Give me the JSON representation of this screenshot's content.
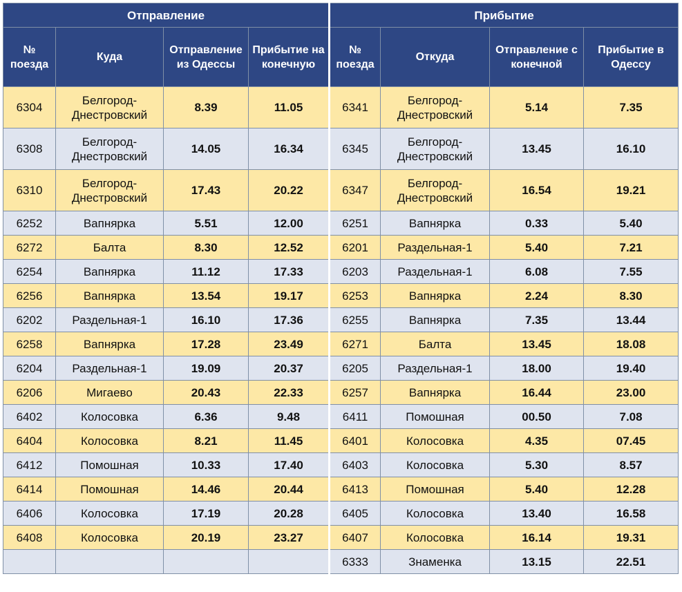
{
  "header": {
    "departure": "Отправление",
    "arrival": "Прибытие",
    "columns": [
      "№ поезда",
      "Куда",
      "Отправление из Одессы",
      "Прибытие на конечную",
      "№ поезда",
      "Откуда",
      "Отправление с конечной",
      "Прибытие в Одессу"
    ]
  },
  "rows": [
    [
      "6304",
      "Белгород-Днестровский",
      "8.39",
      "11.05",
      "6341",
      "Белгород-Днестровский",
      "5.14",
      "7.35"
    ],
    [
      "6308",
      "Белгород-Днестровский",
      "14.05",
      "16.34",
      "6345",
      "Белгород-Днестровский",
      "13.45",
      "16.10"
    ],
    [
      "6310",
      "Белгород-Днестровский",
      "17.43",
      "20.22",
      "6347",
      "Белгород-Днестровский",
      "16.54",
      "19.21"
    ],
    [
      "6252",
      "Вапнярка",
      "5.51",
      "12.00",
      "6251",
      "Вапнярка",
      "0.33",
      "5.40"
    ],
    [
      "6272",
      "Балта",
      "8.30",
      "12.52",
      "6201",
      "Раздельная-1",
      "5.40",
      "7.21"
    ],
    [
      "6254",
      "Вапнярка",
      "11.12",
      "17.33",
      "6203",
      "Раздельная-1",
      "6.08",
      "7.55"
    ],
    [
      "6256",
      "Вапнярка",
      "13.54",
      "19.17",
      "6253",
      "Вапнярка",
      "2.24",
      "8.30"
    ],
    [
      "6202",
      "Раздельная-1",
      "16.10",
      "17.36",
      "6255",
      "Вапнярка",
      "7.35",
      "13.44"
    ],
    [
      "6258",
      "Вапнярка",
      "17.28",
      "23.49",
      "6271",
      "Балта",
      "13.45",
      "18.08"
    ],
    [
      "6204",
      "Раздельная-1",
      "19.09",
      "20.37",
      "6205",
      "Раздельная-1",
      "18.00",
      "19.40"
    ],
    [
      "6206",
      "Мигаево",
      "20.43",
      "22.33",
      "6257",
      "Вапнярка",
      "16.44",
      "23.00"
    ],
    [
      "6402",
      "Колосовка",
      "6.36",
      "9.48",
      "6411",
      "Помошная",
      "00.50",
      "7.08"
    ],
    [
      "6404",
      "Колосовка",
      "8.21",
      "11.45",
      "6401",
      "Колосовка",
      "4.35",
      "07.45"
    ],
    [
      "6412",
      "Помошная",
      "10.33",
      "17.40",
      "6403",
      "Колосовка",
      "5.30",
      "8.57"
    ],
    [
      "6414",
      "Помошная",
      "14.46",
      "20.44",
      "6413",
      "Помошная",
      "5.40",
      "12.28"
    ],
    [
      "6406",
      "Колосовка",
      "17.19",
      "20.28",
      "6405",
      "Колосовка",
      "13.40",
      "16.58"
    ],
    [
      "6408",
      "Колосовка",
      "20.19",
      "23.27",
      "6407",
      "Колосовка",
      "16.14",
      "19.31"
    ],
    [
      "",
      "",
      "",
      "",
      "6333",
      "Знаменка",
      "13.15",
      "22.51"
    ]
  ]
}
